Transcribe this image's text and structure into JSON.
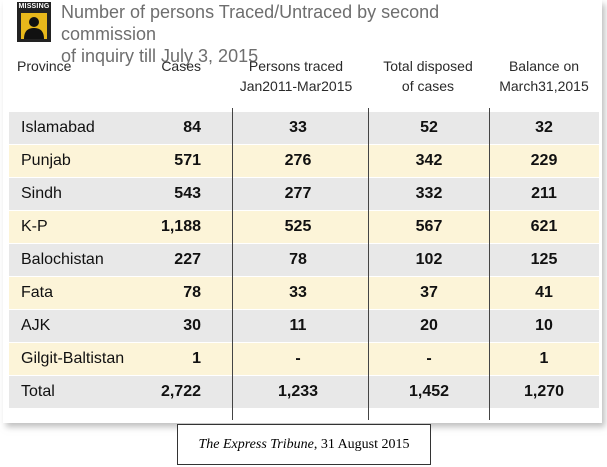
{
  "header": {
    "badge_label": "MISSING",
    "title_line1": "Number of persons Traced/Untraced by second commission",
    "title_line2": "of inquiry till July 3, 2015"
  },
  "columns": {
    "province": "Province",
    "cases": "Cases",
    "traced_line1": "Persons traced",
    "traced_line2": "Jan2011-Mar2015",
    "disposed_line1": "Total disposed",
    "disposed_line2": "of cases",
    "balance_line1": "Balance on",
    "balance_line2": "March31,2015"
  },
  "rows": [
    {
      "province": "Islamabad",
      "cases": "84",
      "traced": "33",
      "disposed": "52",
      "balance": "32"
    },
    {
      "province": "Punjab",
      "cases": "571",
      "traced": "276",
      "disposed": "342",
      "balance": "229"
    },
    {
      "province": "Sindh",
      "cases": "543",
      "traced": "277",
      "disposed": "332",
      "balance": "211"
    },
    {
      "province": "K-P",
      "cases": "1,188",
      "traced": "525",
      "disposed": "567",
      "balance": "621"
    },
    {
      "province": "Balochistan",
      "cases": "227",
      "traced": "78",
      "disposed": "102",
      "balance": "125"
    },
    {
      "province": "Fata",
      "cases": "78",
      "traced": "33",
      "disposed": "37",
      "balance": "41"
    },
    {
      "province": "AJK",
      "cases": "30",
      "traced": "11",
      "disposed": "20",
      "balance": "10"
    },
    {
      "province": "Gilgit-Baltistan",
      "cases": "1",
      "traced": "-",
      "disposed": "-",
      "balance": "1"
    },
    {
      "province": "Total",
      "cases": "2,722",
      "traced": "1,233",
      "disposed": "1,452",
      "balance": "1,270"
    }
  ],
  "credit": {
    "publication": "The Express Tribune",
    "date": ", 31 August 2015"
  },
  "colors": {
    "gray_row": "#e8e8e8",
    "yellow_row": "#fcf4d8",
    "badge_yellow": "#e8b81b",
    "title_gray": "#6e6e6e"
  }
}
